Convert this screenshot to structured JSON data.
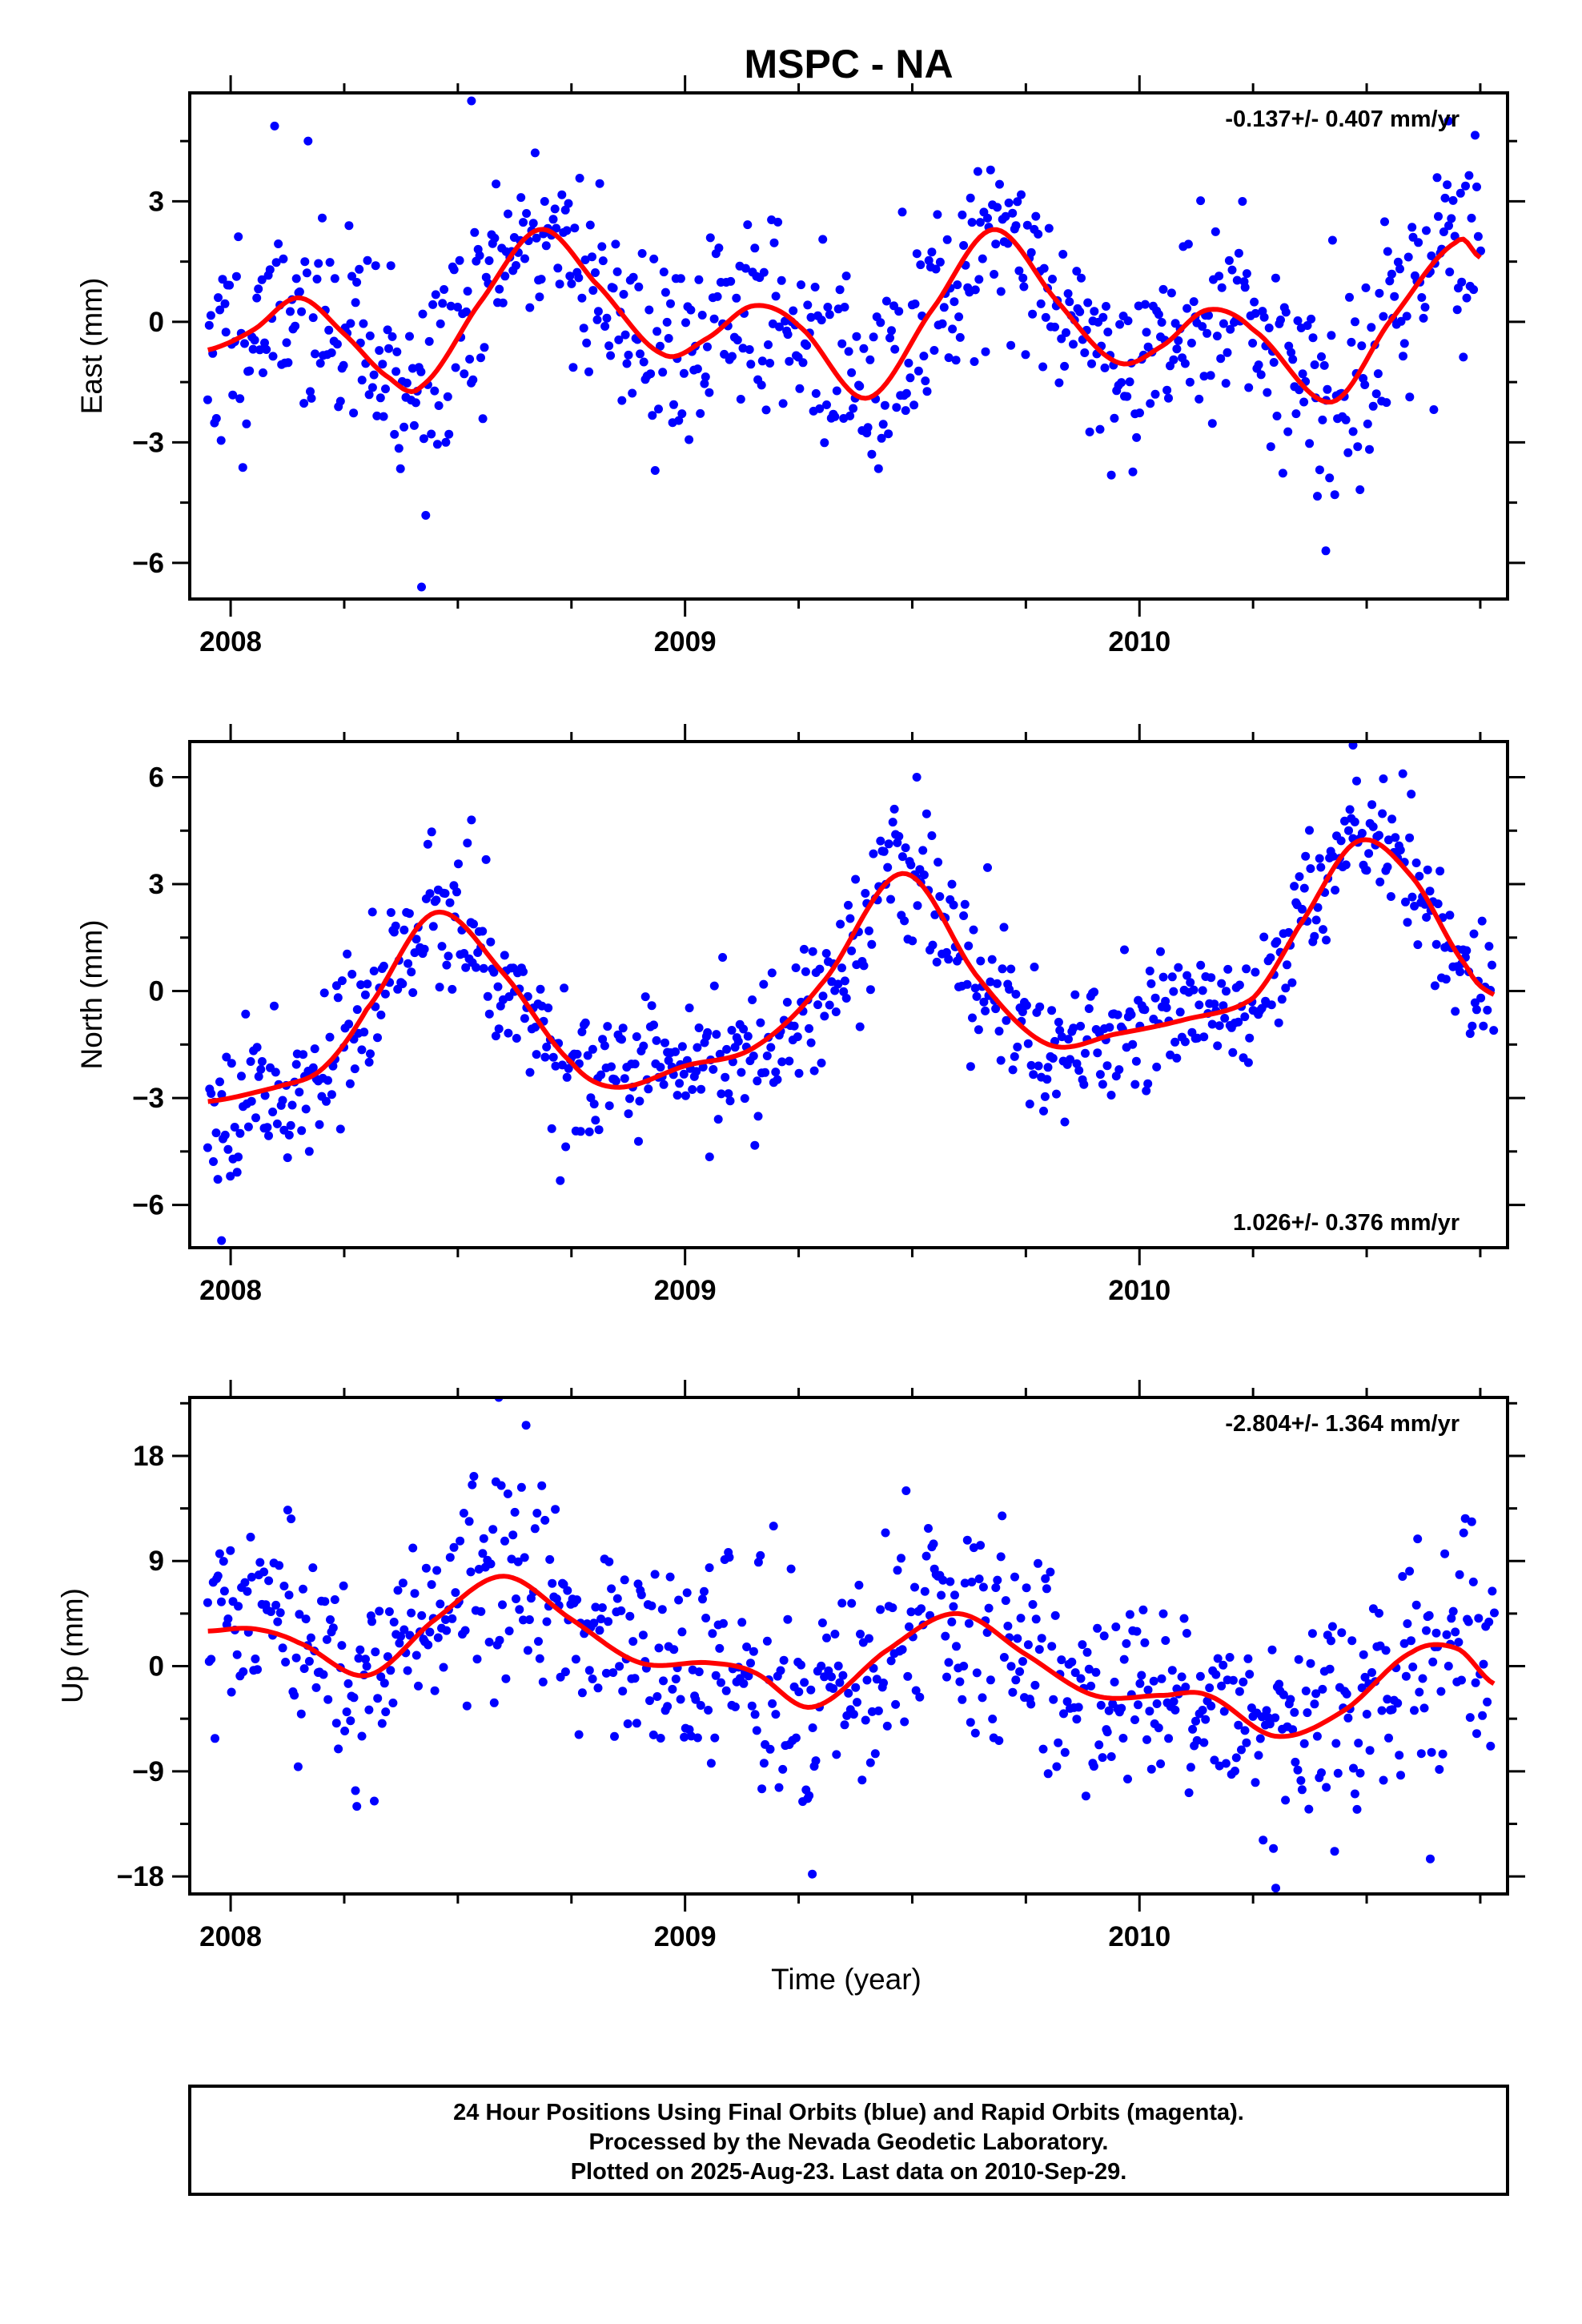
{
  "title": "MSPC - NA",
  "xlabel": "Time (year)",
  "footer": {
    "lines": [
      "24 Hour Positions Using Final Orbits (blue) and Rapid Orbits (magenta).",
      "Processed by the Nevada Geodetic Laboratory.",
      "Plotted on 2025-Aug-23. Last data on 2010-Sep-29."
    ]
  },
  "colors": {
    "points": "#0000ff",
    "fit": "#ff0000",
    "frame": "#000000"
  },
  "chart_data": [
    {
      "type": "scatter",
      "ylabel": "East (mm)",
      "rate": "-0.137+/- 0.407 mm/yr",
      "rate_position": "top-right",
      "xlim": [
        2007.91,
        2010.81
      ],
      "ylim": [
        -6.9,
        5.7
      ],
      "xticks": [
        2008,
        2009,
        2010
      ],
      "yticks": [
        -6,
        -3,
        0,
        3
      ],
      "fit": {
        "x": [
          2007.95,
          2008.05,
          2008.15,
          2008.25,
          2008.35,
          2008.42,
          2008.55,
          2008.68,
          2008.8,
          2008.95,
          2009.05,
          2009.15,
          2009.25,
          2009.4,
          2009.55,
          2009.68,
          2009.82,
          2009.95,
          2010.05,
          2010.15,
          2010.25,
          2010.42,
          2010.55,
          2010.7,
          2010.75
        ],
        "y": [
          -0.7,
          -0.2,
          0.6,
          -0.3,
          -1.4,
          -1.6,
          0.5,
          2.3,
          1.0,
          -0.8,
          -0.4,
          0.4,
          -0.1,
          -1.9,
          0.4,
          2.3,
          0.5,
          -1.0,
          -0.6,
          0.3,
          -0.2,
          -2.0,
          0.0,
          2.0,
          1.6
        ]
      },
      "scatter": {
        "count": 760,
        "seed": 11,
        "noise": 1.3,
        "outliers": [
          [
            2008.42,
            -6.6
          ],
          [
            2008.53,
            5.5
          ],
          [
            2010.68,
            5.0
          ],
          [
            2010.41,
            -5.7
          ]
        ]
      }
    },
    {
      "type": "scatter",
      "ylabel": "North (mm)",
      "rate": "1.026+/- 0.376 mm/yr",
      "rate_position": "bottom-right",
      "xlim": [
        2007.91,
        2010.81
      ],
      "ylim": [
        -7.2,
        7.0
      ],
      "xticks": [
        2008,
        2009,
        2010
      ],
      "yticks": [
        -6,
        -3,
        0,
        3,
        6
      ],
      "fit": {
        "x": [
          2007.95,
          2008.1,
          2008.2,
          2008.3,
          2008.45,
          2008.6,
          2008.75,
          2008.85,
          2009.0,
          2009.15,
          2009.3,
          2009.48,
          2009.65,
          2009.8,
          2009.95,
          2010.1,
          2010.25,
          2010.35,
          2010.48,
          2010.6,
          2010.72,
          2010.78
        ],
        "y": [
          -3.1,
          -2.7,
          -2.2,
          -0.5,
          2.2,
          0.5,
          -2.0,
          -2.7,
          -2.1,
          -1.6,
          0.2,
          3.3,
          0.3,
          -1.5,
          -1.2,
          -0.8,
          -0.2,
          1.8,
          4.2,
          3.2,
          0.7,
          -0.1
        ]
      },
      "scatter": {
        "count": 760,
        "seed": 23,
        "noise": 1.0,
        "outliers": [
          [
            2007.98,
            -7.0
          ],
          [
            2008.53,
            4.8
          ],
          [
            2010.47,
            6.9
          ],
          [
            2009.51,
            6.0
          ]
        ]
      }
    },
    {
      "type": "scatter",
      "ylabel": "Up (mm)",
      "rate": "-2.804+/- 1.364 mm/yr",
      "rate_position": "top-right",
      "xlim": [
        2007.91,
        2010.81
      ],
      "ylim": [
        -19.5,
        23.0
      ],
      "xticks": [
        2008,
        2009,
        2010
      ],
      "yticks": [
        -18,
        -9,
        0,
        9,
        18
      ],
      "fit": {
        "x": [
          2007.95,
          2008.05,
          2008.15,
          2008.3,
          2008.45,
          2008.6,
          2008.75,
          2008.9,
          2009.05,
          2009.15,
          2009.28,
          2009.45,
          2009.6,
          2009.75,
          2009.9,
          2010.05,
          2010.15,
          2010.3,
          2010.45,
          2010.6,
          2010.7,
          2010.78
        ],
        "y": [
          3.0,
          3.2,
          2.0,
          -0.8,
          4.0,
          7.7,
          4.0,
          0.3,
          0.3,
          -0.5,
          -3.5,
          1.5,
          4.5,
          1.0,
          -2.5,
          -2.5,
          -2.5,
          -6.0,
          -3.8,
          1.2,
          1.5,
          -1.5
        ]
      },
      "scatter": {
        "count": 760,
        "seed": 37,
        "noise": 4.5,
        "outliers": [
          [
            2008.59,
            23.0
          ],
          [
            2009.28,
            -17.8
          ],
          [
            2010.3,
            -19.0
          ],
          [
            2010.64,
            -16.5
          ]
        ]
      }
    }
  ]
}
